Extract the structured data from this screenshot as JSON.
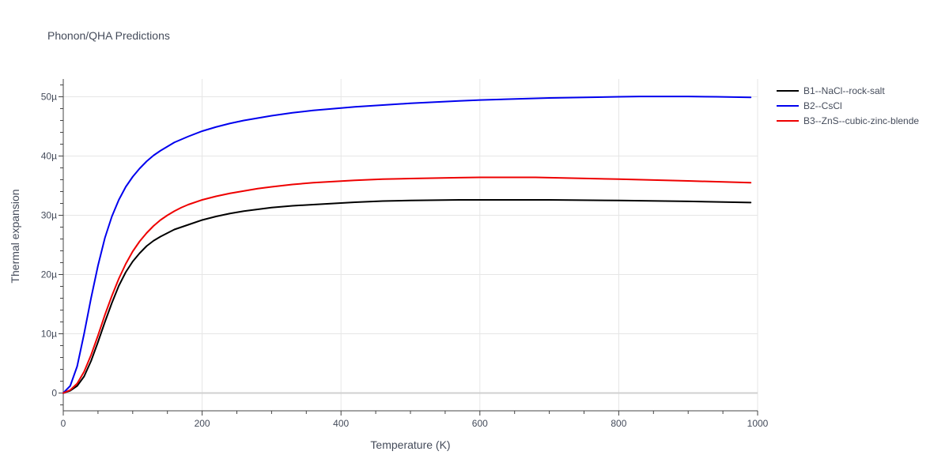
{
  "chart_data": {
    "type": "line",
    "title": "Phonon/QHA Predictions",
    "xlabel": "Temperature (K)",
    "ylabel": "Thermal expansion",
    "xlim": [
      0,
      1000
    ],
    "ylim": [
      -3e-06,
      5.3e-05
    ],
    "x_ticks": [
      0,
      200,
      400,
      600,
      800,
      1000
    ],
    "x_tick_labels": [
      "0",
      "200",
      "400",
      "600",
      "800",
      "1000"
    ],
    "y_ticks": [
      0,
      1e-05,
      2e-05,
      3e-05,
      4e-05,
      5e-05
    ],
    "y_tick_labels": [
      "0",
      "10µ",
      "20µ",
      "30µ",
      "40µ",
      "50µ"
    ],
    "grid": true,
    "legend_position": "top-right",
    "series": [
      {
        "name": "B1--NaCl--rock-salt",
        "color": "#000000",
        "x": [
          0,
          10,
          20,
          30,
          40,
          50,
          60,
          70,
          80,
          90,
          100,
          110,
          120,
          130,
          140,
          150,
          160,
          170,
          180,
          200,
          220,
          240,
          260,
          280,
          300,
          330,
          360,
          390,
          420,
          460,
          500,
          570,
          700,
          800,
          900,
          990
        ],
        "y": [
          0,
          4e-07,
          1.2e-06,
          2.8e-06,
          5.4e-06,
          8.6e-06,
          1.2e-05,
          1.52e-05,
          1.81e-05,
          2.04e-05,
          2.22e-05,
          2.36e-05,
          2.48e-05,
          2.57e-05,
          2.64e-05,
          2.7e-05,
          2.76e-05,
          2.8e-05,
          2.84e-05,
          2.92e-05,
          2.98e-05,
          3.03e-05,
          3.07e-05,
          3.1e-05,
          3.13e-05,
          3.16e-05,
          3.18e-05,
          3.2e-05,
          3.22e-05,
          3.24e-05,
          3.25e-05,
          3.26e-05,
          3.26e-05,
          3.25e-05,
          3.235e-05,
          3.215e-05
        ]
      },
      {
        "name": "B2--CsCl",
        "color": "#0000ee",
        "x": [
          0,
          10,
          20,
          30,
          40,
          50,
          60,
          70,
          80,
          90,
          100,
          110,
          120,
          130,
          140,
          150,
          160,
          170,
          180,
          200,
          220,
          240,
          260,
          280,
          300,
          330,
          360,
          390,
          420,
          460,
          500,
          570,
          600,
          700,
          800,
          830,
          900,
          940,
          990
        ],
        "y": [
          0,
          1.2e-06,
          4.5e-06,
          1e-05,
          1.6e-05,
          2.15e-05,
          2.62e-05,
          2.98e-05,
          3.26e-05,
          3.48e-05,
          3.65e-05,
          3.79e-05,
          3.91e-05,
          4.01e-05,
          4.09e-05,
          4.16e-05,
          4.23e-05,
          4.28e-05,
          4.33e-05,
          4.42e-05,
          4.49e-05,
          4.55e-05,
          4.6e-05,
          4.64e-05,
          4.68e-05,
          4.73e-05,
          4.77e-05,
          4.8e-05,
          4.83e-05,
          4.86e-05,
          4.89e-05,
          4.93e-05,
          4.945e-05,
          4.98e-05,
          5e-05,
          5.005e-05,
          5.005e-05,
          5e-05,
          4.99e-05
        ]
      },
      {
        "name": "B3--ZnS--cubic-zinc-blende",
        "color": "#ee0000",
        "x": [
          0,
          10,
          20,
          30,
          40,
          50,
          60,
          70,
          80,
          90,
          100,
          110,
          120,
          130,
          140,
          150,
          160,
          170,
          180,
          200,
          220,
          240,
          260,
          280,
          300,
          330,
          360,
          390,
          420,
          460,
          500,
          570,
          600,
          680,
          800,
          900,
          990
        ],
        "y": [
          0,
          5e-07,
          1.6e-06,
          3.6e-06,
          6.4e-06,
          9.7e-06,
          1.32e-05,
          1.64e-05,
          1.93e-05,
          2.18e-05,
          2.39e-05,
          2.56e-05,
          2.7e-05,
          2.82e-05,
          2.92e-05,
          3e-05,
          3.07e-05,
          3.13e-05,
          3.18e-05,
          3.26e-05,
          3.32e-05,
          3.37e-05,
          3.41e-05,
          3.45e-05,
          3.48e-05,
          3.52e-05,
          3.55e-05,
          3.57e-05,
          3.59e-05,
          3.61e-05,
          3.62e-05,
          3.635e-05,
          3.64e-05,
          3.64e-05,
          3.61e-05,
          3.58e-05,
          3.55e-05
        ]
      }
    ]
  }
}
